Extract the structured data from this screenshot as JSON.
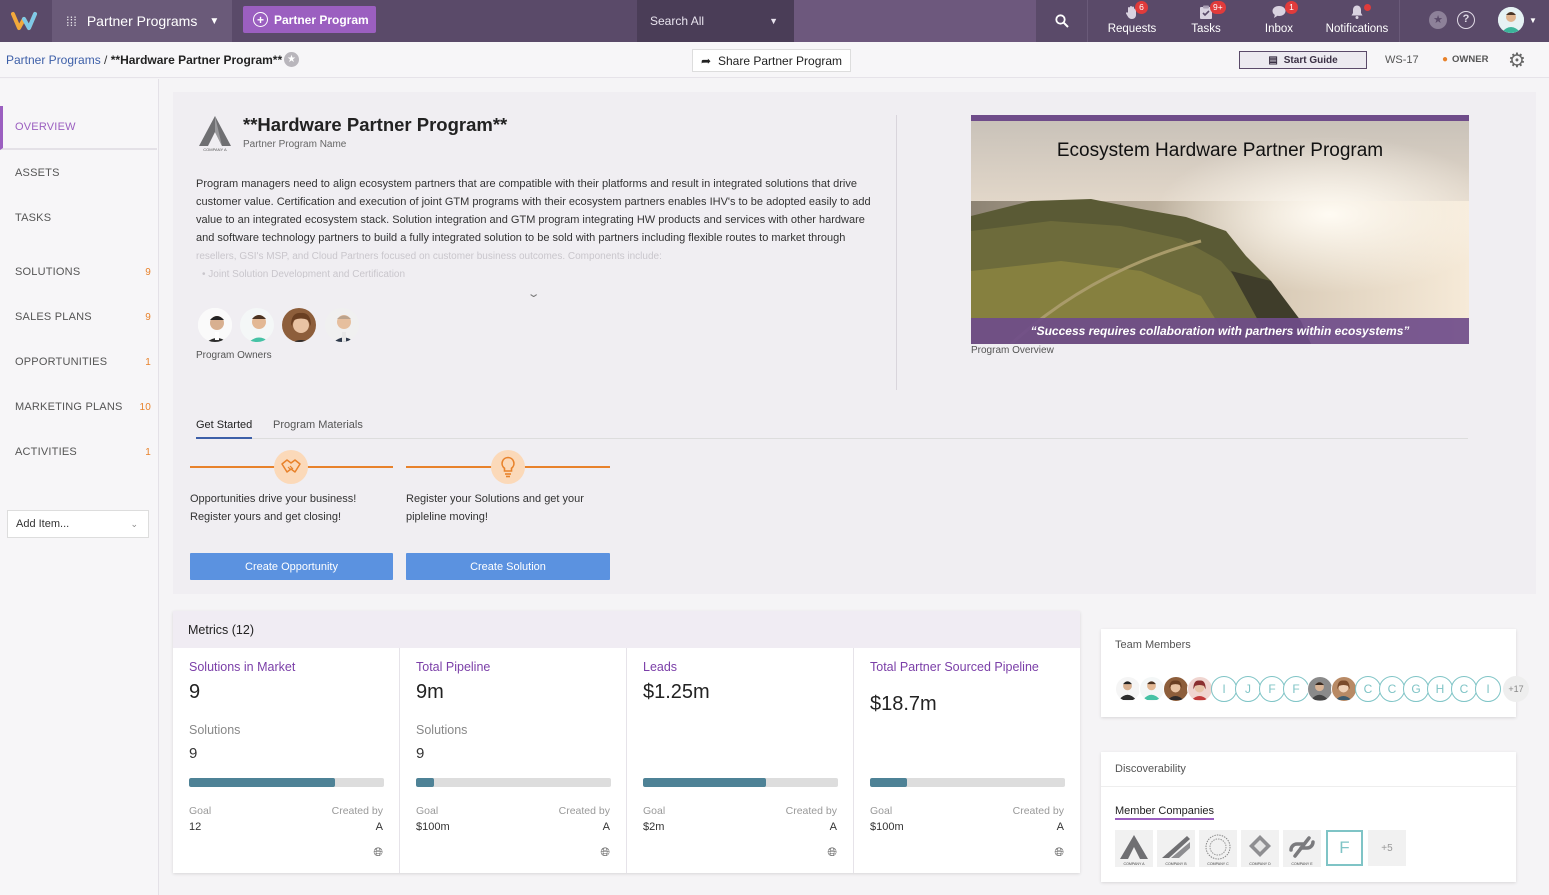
{
  "topbar": {
    "app_name": "Partner Programs",
    "new_button": "Partner Program",
    "search_scope": "Search All",
    "nav": [
      {
        "label": "Requests",
        "badge": "6"
      },
      {
        "label": "Tasks",
        "badge": "9+"
      },
      {
        "label": "Inbox",
        "badge": "1"
      },
      {
        "label": "Notifications",
        "badge": ""
      }
    ]
  },
  "breadcrumb": {
    "root": "Partner Programs",
    "separator": "/",
    "current": "**Hardware Partner Program**"
  },
  "actions": {
    "share": "Share Partner Program",
    "start_guide": "Start Guide",
    "workspace_id": "WS-17",
    "role": "OWNER"
  },
  "sidebar": {
    "items": [
      {
        "label": "OVERVIEW",
        "count": ""
      },
      {
        "label": "ASSETS",
        "count": ""
      },
      {
        "label": "TASKS",
        "count": ""
      },
      {
        "label": "SOLUTIONS",
        "count": "9"
      },
      {
        "label": "SALES PLANS",
        "count": "9"
      },
      {
        "label": "OPPORTUNITIES",
        "count": "1"
      },
      {
        "label": "MARKETING PLANS",
        "count": "10"
      },
      {
        "label": "ACTIVITIES",
        "count": "1"
      }
    ],
    "add_item": "Add Item..."
  },
  "program": {
    "logo_text": "COMPANY A",
    "title": "**Hardware Partner Program**",
    "title_label": "Partner Program Name",
    "description": "Program managers need to align ecosystem partners that are compatible with their platforms and result in integrated solutions that drive customer value. Certification and execution of joint GTM programs with their ecosystem partners enables IHV's to be adopted easily to add value to an integrated ecosystem stack. Solution integration and GTM program integrating HW products and services with other hardware and software technology partners to build a fully integrated solution to be sold with partners including flexible routes to market through",
    "description_faded": "resellers, GSI's MSP, and Cloud Partners focused on customer business outcomes. Components include:",
    "description_bullet": "Joint Solution Development and Certification",
    "owners_label": "Program Owners",
    "banner_title": "Ecosystem Hardware Partner Program",
    "banner_quote": "“Success requires collaboration with partners within ecosystems”",
    "banner_label": "Program Overview"
  },
  "tabs": [
    "Get Started",
    "Program Materials"
  ],
  "steps": [
    {
      "text_1": "Opportunities drive your business!",
      "text_2": "Register yours and get closing!",
      "button": "Create Opportunity"
    },
    {
      "text_1": "Register your Solutions and get your",
      "text_2": "pipleline moving!",
      "button": "Create Solution"
    }
  ],
  "metrics": {
    "header": "Metrics (12)",
    "cards": [
      {
        "title": "Solutions in Market",
        "value": "9",
        "sub_label": "Solutions",
        "sub_value": "9",
        "progress": 0.75,
        "goal_label": "Goal",
        "goal": "12",
        "created_label": "Created by",
        "created_by": "A"
      },
      {
        "title": "Total Pipeline",
        "value": "9m",
        "sub_label": "Solutions",
        "sub_value": "9",
        "progress": 0.09,
        "goal_label": "Goal",
        "goal": "$100m",
        "created_label": "Created by",
        "created_by": "A"
      },
      {
        "title": "Leads",
        "value": "$1.25m",
        "sub_label": "",
        "sub_value": "",
        "progress": 0.63,
        "goal_label": "Goal",
        "goal": "$2m",
        "created_label": "Created by",
        "created_by": "A"
      },
      {
        "title": "Total Partner Sourced Pipeline",
        "value": "$18.7m",
        "sub_label": "",
        "sub_value": "",
        "progress": 0.19,
        "goal_label": "Goal",
        "goal": "$100m",
        "created_label": "Created by",
        "created_by": "A"
      }
    ]
  },
  "team": {
    "header": "Team Members",
    "initials": [
      "I",
      "J",
      "F",
      "F",
      "C",
      "C",
      "G",
      "H",
      "C",
      "I"
    ],
    "more": "+17"
  },
  "discoverability": {
    "header": "Discoverability",
    "tab": "Member Companies",
    "companies": [
      "COMPANY A",
      "COMPANY B",
      "COMPANY C",
      "COMPANY D",
      "COMPANY E"
    ],
    "initial_tile": "F",
    "more": "+5"
  },
  "colors": {
    "topbar": "#5a4a69",
    "accent_purple": "#9b5fc0",
    "accent_orange": "#e8822b",
    "button_blue": "#5b92e0",
    "progress_fill": "#4e8296"
  }
}
